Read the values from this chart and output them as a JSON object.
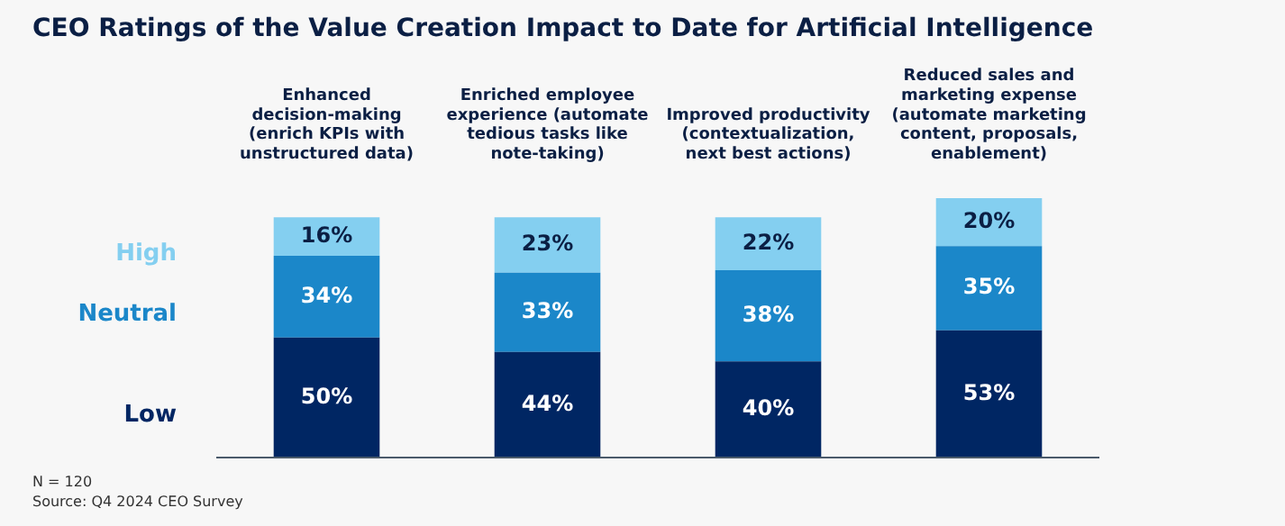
{
  "chart_data": {
    "type": "bar",
    "title": "CEO Ratings of the Value Creation Impact to Date for Artificial Intelligence",
    "categories": [
      "Enhanced decision-making (enrich KPIs with unstructured data)",
      "Enriched employee experience (automate tedious tasks like note-taking)",
      "Improved productivity (contextualization, next best actions)",
      "Reduced sales and marketing expense (automate marketing content, proposals, enablement)"
    ],
    "stacked": true,
    "series": [
      {
        "name": "Low",
        "color": "#002663",
        "values": [
          50,
          44,
          40,
          53
        ],
        "value_labels": [
          "50%",
          "44%",
          "40%",
          "53%"
        ]
      },
      {
        "name": "Neutral",
        "color": "#1b87c9",
        "values": [
          34,
          33,
          38,
          35
        ],
        "value_labels": [
          "34%",
          "33%",
          "38%",
          "35%"
        ]
      },
      {
        "name": "High",
        "color": "#84cff0",
        "values": [
          16,
          23,
          22,
          20
        ],
        "value_labels": [
          "16%",
          "23%",
          "22%",
          "20%"
        ]
      }
    ],
    "legend": false,
    "grid": false,
    "tick_labels": "x",
    "annotations": [
      "N = 120",
      "Source: Q4 2024 CEO Survey"
    ]
  }
}
